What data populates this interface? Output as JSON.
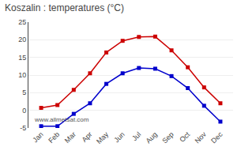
{
  "chart_data": {
    "type": "line",
    "title": "Koszalin : temperatures (°C)",
    "categories": [
      "Jan",
      "Feb",
      "Mar",
      "Apr",
      "May",
      "Jun",
      "Jul",
      "Aug",
      "Sep",
      "Oct",
      "Nov",
      "Dec"
    ],
    "series": [
      {
        "color": "#cc0000",
        "marker": "square",
        "line_style": "solid",
        "values": [
          0.7,
          1.5,
          5.8,
          10.5,
          16.4,
          19.7,
          20.8,
          20.9,
          17.0,
          12.2,
          6.5,
          2.0
        ]
      },
      {
        "color": "#0000cc",
        "marker": "square",
        "line_style": "solid",
        "values": [
          -4.5,
          -4.5,
          -1.0,
          2.0,
          7.5,
          10.5,
          12.0,
          11.8,
          9.7,
          6.3,
          1.3,
          -3.2
        ]
      }
    ],
    "ylim": [
      -5,
      25
    ],
    "yticks": [
      -5,
      0,
      5,
      10,
      15,
      20,
      25
    ],
    "grid": true,
    "annotations": [
      "www.allmetsat.com"
    ]
  }
}
